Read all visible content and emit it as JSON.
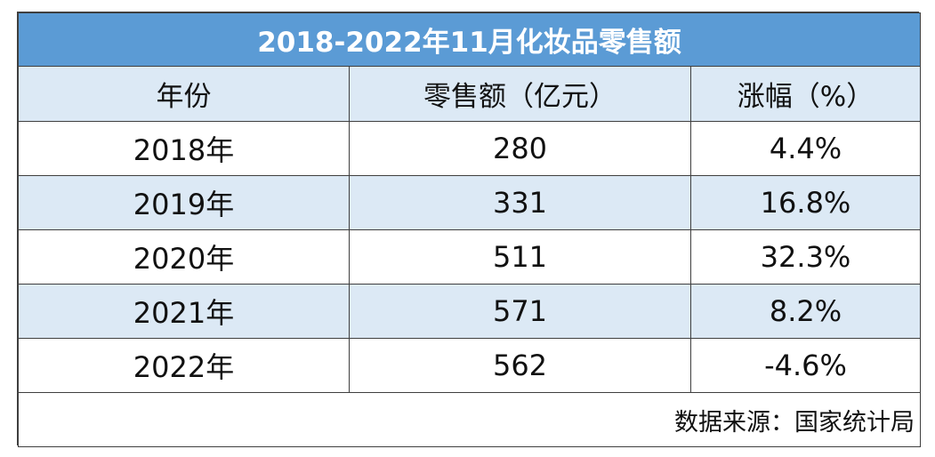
{
  "table": {
    "title": "2018-2022年11月化妆品零售额",
    "headers": [
      "年份",
      "零售额（亿元）",
      "涨幅（%）"
    ],
    "rows": [
      [
        "2018年",
        "280",
        "4.4%"
      ],
      [
        "2019年",
        "331",
        "16.8%"
      ],
      [
        "2020年",
        "511",
        "32.3%"
      ],
      [
        "2021年",
        "571",
        "8.2%"
      ],
      [
        "2022年",
        "562",
        "-4.6%"
      ]
    ],
    "source": "数据来源：国家统计局"
  },
  "colors": {
    "title_background": "#5b9bd5",
    "title_text": "#ffffff",
    "band_background": "#dce9f5",
    "border": "#3f3f3f"
  }
}
